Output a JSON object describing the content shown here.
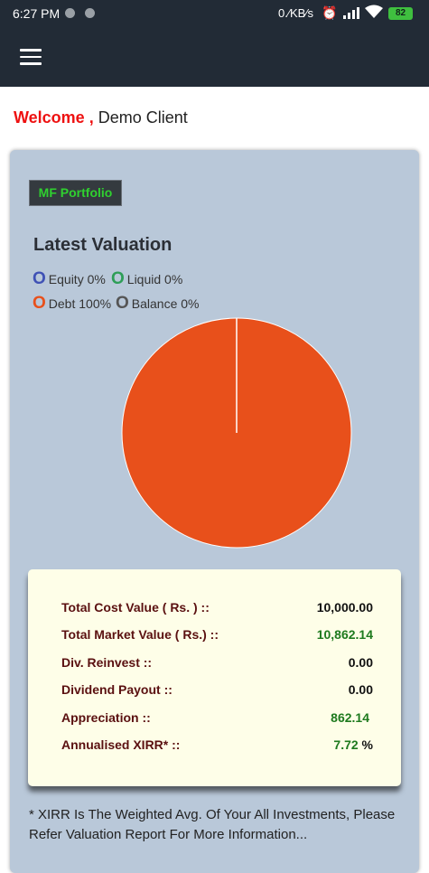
{
  "status_bar": {
    "time": "6:27 PM",
    "network_speed": "0.⁄KB⁄s",
    "battery": "82"
  },
  "app_bar": {
    "menu_icon": "hamburger-menu-icon"
  },
  "welcome": {
    "greeting": "Welcome ,",
    "name": "Demo Client"
  },
  "portfolio": {
    "badge": "MF Portfolio",
    "section_title": "Latest Valuation",
    "legend": [
      {
        "marker": "O",
        "label": "Equity 0%",
        "color": "#3f51b5"
      },
      {
        "marker": "O",
        "label": "Liquid 0%",
        "color": "#2e9e57"
      },
      {
        "marker": "O",
        "label": "Debt 100%",
        "color": "#e8501b"
      },
      {
        "marker": "O",
        "label": "Balance 0%",
        "color": "#555555"
      }
    ]
  },
  "chart_data": {
    "type": "pie",
    "categories": [
      "Equity",
      "Liquid",
      "Debt",
      "Balance"
    ],
    "values": [
      0,
      0,
      100,
      0
    ],
    "colors": [
      "#3f51b5",
      "#2e9e57",
      "#e8501b",
      "#555555"
    ]
  },
  "valuation": {
    "rows": [
      {
        "label": "Total Cost Value ( Rs. ) ::",
        "value": "10,000.00",
        "suffix": ""
      },
      {
        "label": "Total Market Value ( Rs.) ::",
        "value": "10,862.14",
        "suffix": ""
      },
      {
        "label": "Div. Reinvest ::",
        "value": "0.00",
        "suffix": ""
      },
      {
        "label": "Dividend Payout ::",
        "value": "0.00",
        "suffix": ""
      },
      {
        "label": "Appreciation ::",
        "value": "862.14",
        "suffix": ""
      },
      {
        "label": "Annualised XIRR* ::",
        "value": "7.72",
        "suffix": "%"
      }
    ]
  },
  "footnote": "* XIRR Is The Weighted Avg. Of Your All Investments, Please Refer Valuation Report For More Information..."
}
